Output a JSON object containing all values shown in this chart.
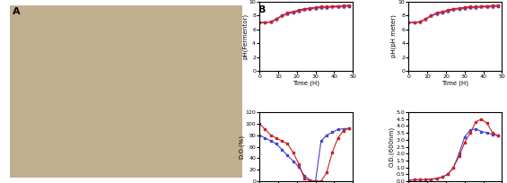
{
  "ph_fermentor_blue": [
    7.0,
    7.0,
    7.1,
    7.5,
    8.0,
    8.3,
    8.5,
    8.7,
    8.9,
    9.0,
    9.1,
    9.2,
    9.2,
    9.3,
    9.3,
    9.35,
    9.4
  ],
  "ph_fermentor_red": [
    7.0,
    7.0,
    7.1,
    7.5,
    8.0,
    8.4,
    8.6,
    8.8,
    9.0,
    9.1,
    9.2,
    9.3,
    9.3,
    9.35,
    9.4,
    9.45,
    9.5
  ],
  "ph_fermentor_pink": [
    7.0,
    7.0,
    7.05,
    7.4,
    7.9,
    8.2,
    8.4,
    8.6,
    8.8,
    8.9,
    9.0,
    9.1,
    9.1,
    9.2,
    9.2,
    9.25,
    9.3
  ],
  "ph_meter_blue": [
    7.0,
    7.0,
    7.1,
    7.5,
    8.0,
    8.3,
    8.5,
    8.7,
    8.9,
    9.0,
    9.1,
    9.2,
    9.2,
    9.3,
    9.3,
    9.35,
    9.4
  ],
  "ph_meter_red": [
    7.0,
    7.0,
    7.1,
    7.5,
    8.0,
    8.4,
    8.6,
    8.8,
    9.0,
    9.1,
    9.2,
    9.3,
    9.3,
    9.35,
    9.4,
    9.45,
    9.5
  ],
  "ph_meter_pink": [
    7.0,
    7.0,
    7.05,
    7.4,
    7.9,
    8.2,
    8.4,
    8.6,
    8.8,
    8.9,
    9.0,
    9.1,
    9.1,
    9.2,
    9.2,
    9.25,
    9.3
  ],
  "ph_time": [
    0,
    3,
    6,
    9,
    12,
    15,
    18,
    21,
    24,
    27,
    30,
    33,
    36,
    39,
    42,
    45,
    48
  ],
  "do_time": [
    0,
    3,
    6,
    9,
    12,
    15,
    18,
    21,
    24,
    27,
    30,
    33,
    36,
    39,
    42,
    45,
    48
  ],
  "do_blue": [
    80,
    75,
    70,
    65,
    55,
    45,
    35,
    25,
    10,
    2,
    0,
    70,
    80,
    85,
    90,
    91,
    92
  ],
  "do_red": [
    100,
    90,
    80,
    75,
    70,
    65,
    50,
    30,
    5,
    1,
    0,
    0,
    15,
    50,
    75,
    88,
    92
  ],
  "od_time": [
    0,
    3,
    6,
    9,
    12,
    15,
    18,
    21,
    24,
    27,
    30,
    33,
    36,
    39,
    42,
    45,
    48
  ],
  "od_blue": [
    0.05,
    0.1,
    0.1,
    0.1,
    0.15,
    0.2,
    0.3,
    0.5,
    1.0,
    2.0,
    3.2,
    3.7,
    3.8,
    3.6,
    3.5,
    3.4,
    3.3
  ],
  "od_red": [
    0.05,
    0.1,
    0.1,
    0.1,
    0.15,
    0.2,
    0.3,
    0.5,
    1.0,
    1.8,
    2.8,
    3.5,
    4.3,
    4.5,
    4.2,
    3.5,
    3.3
  ],
  "color_blue": "#4444cc",
  "color_red": "#cc2222",
  "color_pink": "#dd88aa",
  "marker": "s",
  "markersize": 2.0,
  "linewidth": 0.8,
  "ylabel_ph_fermentor": "pH(Fermentor)",
  "ylabel_ph_meter": "pH(pH meter)",
  "ylabel_do": "D.O.(%)",
  "ylabel_od": "O.D.(600nm)",
  "xlabel": "Time (H)",
  "ph_ylim": [
    0,
    10
  ],
  "ph_yticks": [
    0,
    2.0,
    4.0,
    6.0,
    8.0,
    10.0
  ],
  "do_ylim": [
    0,
    120
  ],
  "do_yticks": [
    0,
    20,
    40,
    60,
    80,
    100,
    120
  ],
  "od_ylim": [
    0,
    5
  ],
  "od_yticks": [
    0,
    0.5,
    1.0,
    1.5,
    2.0,
    2.5,
    3.0,
    3.5,
    4.0,
    4.5,
    5.0
  ],
  "xlim": [
    0,
    50
  ],
  "xticks": [
    0,
    10,
    20,
    30,
    40,
    50
  ],
  "label_A": "A",
  "label_B": "B",
  "tick_fontsize": 4.5,
  "label_fontsize": 5.0,
  "panel_label_fontsize": 8
}
